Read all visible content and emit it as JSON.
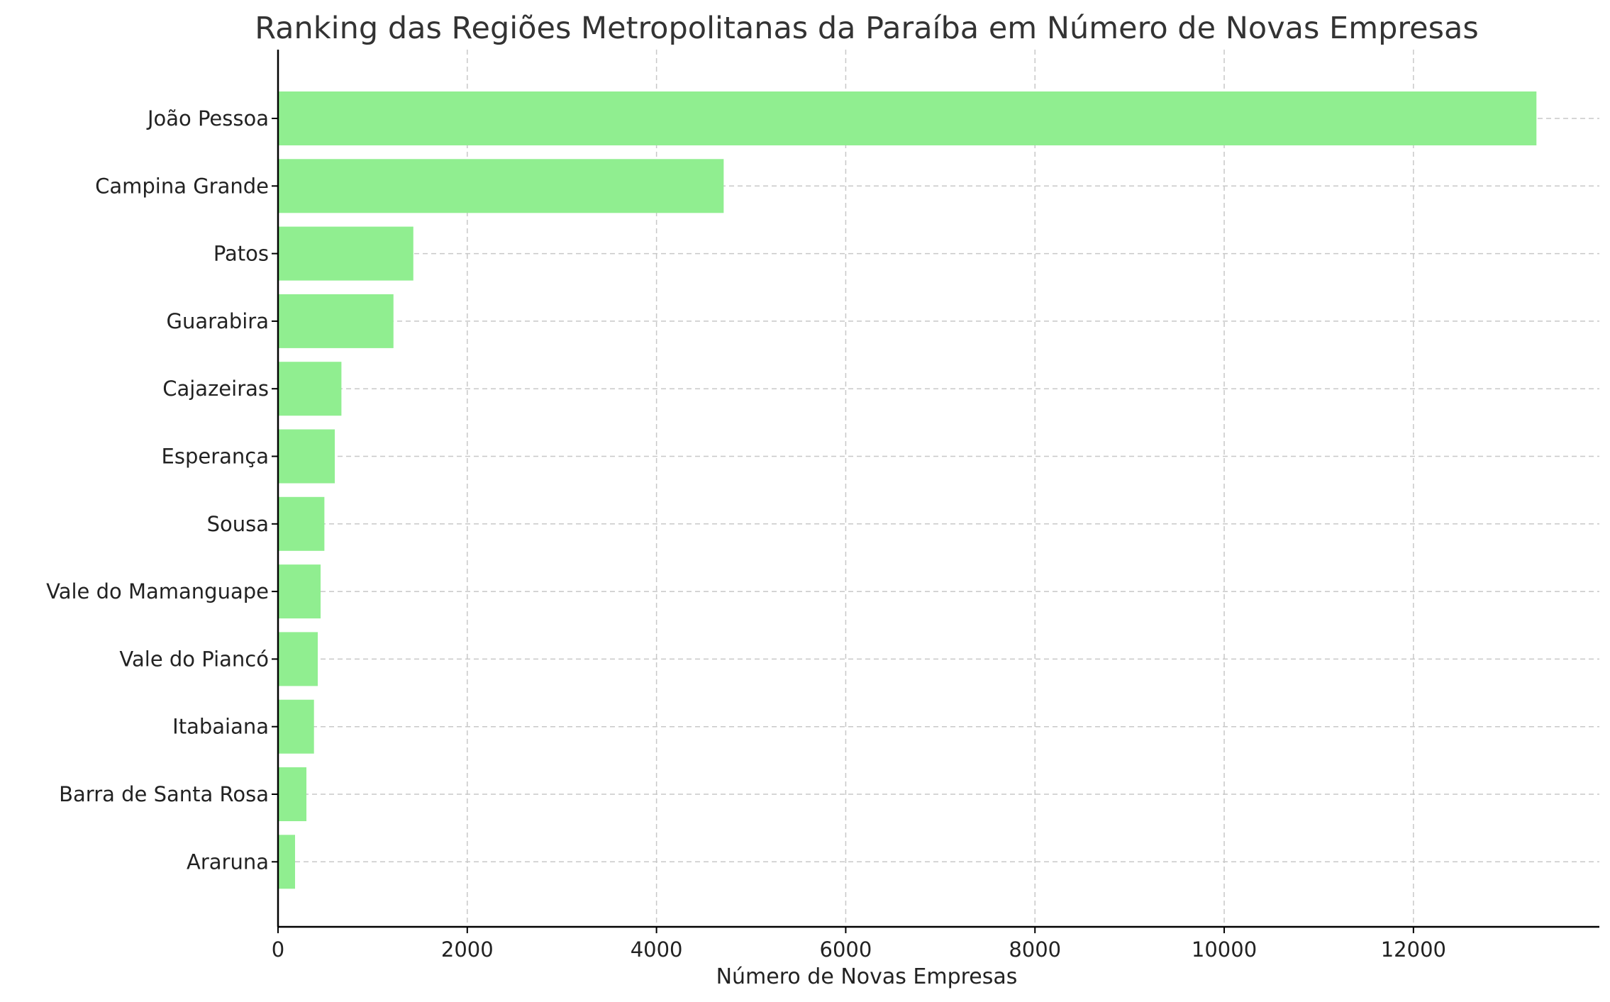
{
  "chart_data": {
    "type": "bar",
    "orientation": "horizontal",
    "title": "Ranking das Regiões Metropolitanas da Paraíba em Número de Novas Empresas",
    "xlabel": "Número de Novas Empresas",
    "ylabel": "",
    "categories": [
      "João Pessoa",
      "Campina Grande",
      "Patos",
      "Guarabira",
      "Cajazeiras",
      "Esperança",
      "Sousa",
      "Vale do Mamanguape",
      "Vale do Piancó",
      "Itabaiana",
      "Barra de Santa Rosa",
      "Araruna"
    ],
    "values": [
      13300,
      4710,
      1430,
      1220,
      670,
      600,
      490,
      450,
      420,
      380,
      300,
      180
    ],
    "xlim": [
      0,
      13965
    ],
    "xticks": [
      0,
      2000,
      4000,
      6000,
      8000,
      10000,
      12000
    ],
    "grid": true,
    "bar_color": "#90EE90"
  }
}
